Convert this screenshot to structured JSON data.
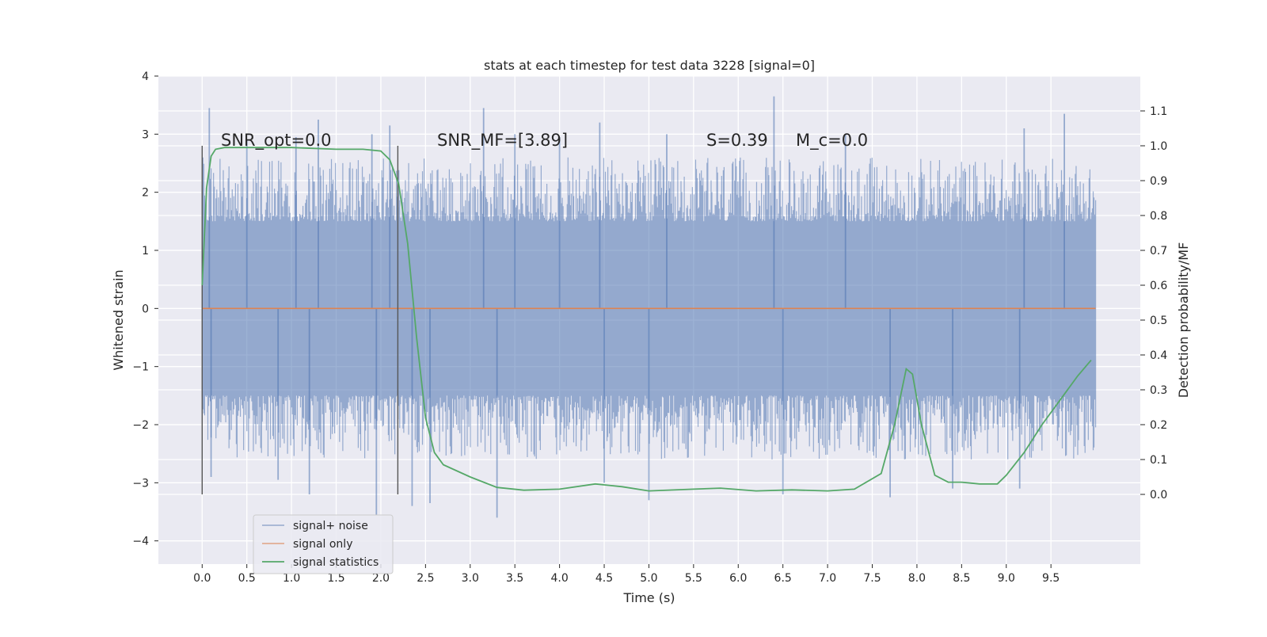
{
  "chart_data": {
    "type": "line",
    "title": "stats at each timestep for test data 3228 [signal=0]",
    "xlabel": "Time (s)",
    "ylabel_left": "Whitened strain",
    "ylabel_right": "Detection probability/MF",
    "xlim": [
      -0.49,
      10.5
    ],
    "ylim_left": [
      -4.4,
      4.0
    ],
    "ylim_right": [
      -0.2,
      1.2
    ],
    "x_ticks": [
      0.0,
      0.5,
      1.0,
      1.5,
      2.0,
      2.5,
      3.0,
      3.5,
      4.0,
      4.5,
      5.0,
      5.5,
      6.0,
      6.5,
      7.0,
      7.5,
      8.0,
      8.5,
      9.0,
      9.5
    ],
    "x_tick_labels": [
      "0.0",
      "0.5",
      "1.0",
      "1.5",
      "2.0",
      "2.5",
      "3.0",
      "3.5",
      "4.0",
      "4.5",
      "5.0",
      "5.5",
      "6.0",
      "6.5",
      "7.0",
      "7.5",
      "8.0",
      "8.5",
      "9.0",
      "9.5"
    ],
    "y_ticks_left": [
      -4,
      -3,
      -2,
      -1,
      0,
      1,
      2,
      3,
      4
    ],
    "y_tick_labels_left": [
      "−4",
      "−3",
      "−2",
      "−1",
      "0",
      "1",
      "2",
      "3",
      "4"
    ],
    "y_ticks_right": [
      0.0,
      0.1,
      0.2,
      0.3,
      0.4,
      0.5,
      0.6,
      0.7,
      0.8,
      0.9,
      1.0,
      1.1
    ],
    "y_tick_labels_right": [
      "0.0",
      "0.1",
      "0.2",
      "0.3",
      "0.4",
      "0.5",
      "0.6",
      "0.7",
      "0.8",
      "0.9",
      "1.0",
      "1.1"
    ],
    "grid": true,
    "legend_position": "lower-left",
    "annotations": {
      "snr_opt": "SNR_opt=0.0",
      "snr_mf": "SNR_MF=[3.89]",
      "s": "S=0.39",
      "mc": "M_c=0.0"
    },
    "vertical_markers": [
      {
        "x": 0.0,
        "y_range": [
          -3.2,
          2.8
        ]
      },
      {
        "x": 2.19,
        "y_range": [
          -3.2,
          2.8
        ]
      }
    ],
    "series": [
      {
        "name": "signal+ noise",
        "axis": "left",
        "color": "#4c72b0",
        "x_range": [
          0.0,
          10.0
        ],
        "typical_envelope": [
          -1.5,
          1.5
        ],
        "peaks": [
          {
            "x": 0.08,
            "y": 3.45
          },
          {
            "x": 0.5,
            "y": 2.9
          },
          {
            "x": 1.05,
            "y": 2.95
          },
          {
            "x": 1.3,
            "y": 3.25
          },
          {
            "x": 1.9,
            "y": 3.0
          },
          {
            "x": 2.1,
            "y": 3.15
          },
          {
            "x": 3.15,
            "y": 3.45
          },
          {
            "x": 3.5,
            "y": 3.0
          },
          {
            "x": 4.0,
            "y": 2.95
          },
          {
            "x": 4.45,
            "y": 3.2
          },
          {
            "x": 5.2,
            "y": 3.0
          },
          {
            "x": 6.4,
            "y": 3.65
          },
          {
            "x": 7.2,
            "y": 3.0
          },
          {
            "x": 9.2,
            "y": 3.1
          },
          {
            "x": 9.65,
            "y": 3.35
          }
        ],
        "troughs": [
          {
            "x": 0.1,
            "y": -2.9
          },
          {
            "x": 0.85,
            "y": -2.95
          },
          {
            "x": 1.2,
            "y": -3.2
          },
          {
            "x": 1.95,
            "y": -3.55
          },
          {
            "x": 2.35,
            "y": -3.4
          },
          {
            "x": 2.55,
            "y": -3.35
          },
          {
            "x": 3.3,
            "y": -3.6
          },
          {
            "x": 4.5,
            "y": -3.0
          },
          {
            "x": 5.0,
            "y": -3.3
          },
          {
            "x": 6.5,
            "y": -3.2
          },
          {
            "x": 7.7,
            "y": -3.25
          },
          {
            "x": 8.4,
            "y": -3.1
          },
          {
            "x": 9.15,
            "y": -3.1
          }
        ]
      },
      {
        "name": "signal only",
        "axis": "left",
        "color": "#dd8452",
        "x": [
          0.0,
          10.0
        ],
        "values": [
          0.0,
          0.0
        ]
      },
      {
        "name": "signal statistics",
        "axis": "right",
        "color": "#55a868",
        "x": [
          0.0,
          0.05,
          0.1,
          0.15,
          0.25,
          0.5,
          1.0,
          1.5,
          1.8,
          2.0,
          2.1,
          2.2,
          2.3,
          2.4,
          2.5,
          2.6,
          2.7,
          3.0,
          3.3,
          3.6,
          4.0,
          4.4,
          4.7,
          5.0,
          5.5,
          5.8,
          6.2,
          6.6,
          7.0,
          7.3,
          7.6,
          7.75,
          7.88,
          7.95,
          8.05,
          8.2,
          8.35,
          8.5,
          8.7,
          8.9,
          9.0,
          9.2,
          9.4,
          9.6,
          9.8,
          9.95
        ],
        "values": [
          0.6,
          0.88,
          0.97,
          0.99,
          0.995,
          0.995,
          0.995,
          0.99,
          0.99,
          0.985,
          0.96,
          0.89,
          0.72,
          0.45,
          0.22,
          0.12,
          0.085,
          0.05,
          0.02,
          0.012,
          0.015,
          0.03,
          0.022,
          0.01,
          0.015,
          0.018,
          0.01,
          0.013,
          0.01,
          0.015,
          0.06,
          0.2,
          0.36,
          0.345,
          0.2,
          0.055,
          0.035,
          0.035,
          0.03,
          0.03,
          0.055,
          0.12,
          0.2,
          0.27,
          0.34,
          0.385
        ]
      }
    ]
  }
}
